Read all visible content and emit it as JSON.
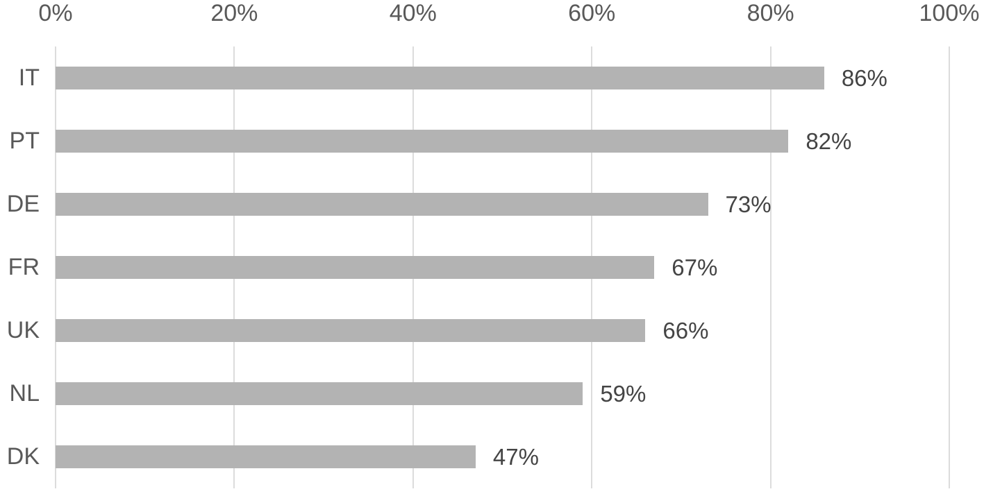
{
  "chart_data": {
    "type": "bar",
    "orientation": "horizontal",
    "title": "",
    "xlabel": "",
    "ylabel": "",
    "categories": [
      "IT",
      "PT",
      "DE",
      "FR",
      "UK",
      "NL",
      "DK"
    ],
    "values": [
      86,
      82,
      73,
      67,
      66,
      59,
      47
    ],
    "value_labels": [
      "86%",
      "82%",
      "73%",
      "67%",
      "66%",
      "59%",
      "47%"
    ],
    "x_ticks": [
      0,
      20,
      40,
      60,
      80,
      100
    ],
    "x_tick_labels": [
      "0%",
      "20%",
      "40%",
      "60%",
      "80%",
      "100%"
    ],
    "xlim": [
      0,
      100
    ],
    "axis_position": "top",
    "grid": "vertical",
    "legend_position": "none",
    "colors": {
      "bar": "#b3b3b3",
      "gridline": "#dcdcdc",
      "axis_text": "#595959",
      "data_label_text": "#444444",
      "background": "#ffffff"
    }
  }
}
